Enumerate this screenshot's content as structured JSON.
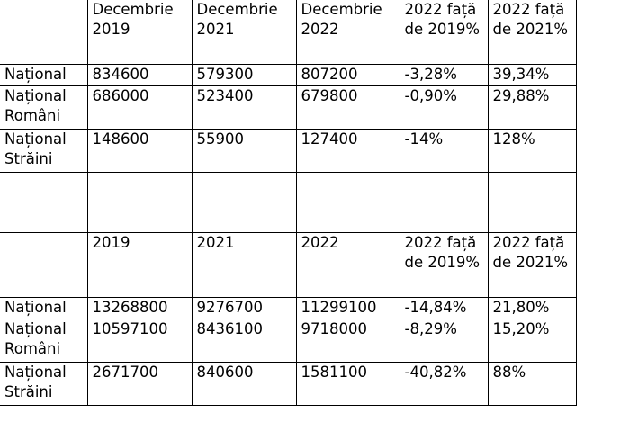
{
  "header1": [
    "",
    "Decembrie 2019",
    "Decembrie 2021",
    "Decembrie 2022",
    "2022 față de 2019%",
    "2022 față de 2021%"
  ],
  "rows1": [
    [
      "Național",
      "834600",
      "579300",
      "807200",
      "-3,28%",
      "39,34%"
    ],
    [
      "Național Români",
      "686000",
      "523400",
      "679800",
      "-0,90%",
      "29,88%"
    ],
    [
      "Național Străini",
      "148600",
      "55900",
      "127400",
      "-14%",
      "128%"
    ]
  ],
  "header2": [
    "",
    "2019",
    "2021",
    "2022",
    "2022 față de 2019%",
    "2022 față de 2021%"
  ],
  "rows2": [
    [
      "Național",
      "13268800",
      "9276700",
      "11299100",
      "-14,84%",
      "21,80%"
    ],
    [
      "Național Români",
      "10597100",
      "8436100",
      "9718000",
      "-8,29%",
      "15,20%"
    ],
    [
      "Național Străini",
      "2671700",
      "840600",
      "1581100",
      "-40,82%",
      "88%"
    ]
  ]
}
